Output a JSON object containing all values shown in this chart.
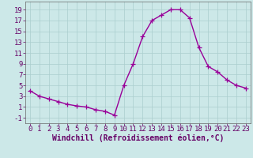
{
  "hours": [
    0,
    1,
    2,
    3,
    4,
    5,
    6,
    7,
    8,
    9,
    10,
    11,
    12,
    13,
    14,
    15,
    16,
    17,
    18,
    19,
    20,
    21,
    22,
    23
  ],
  "values": [
    4.0,
    3.0,
    2.5,
    2.0,
    1.5,
    1.2,
    1.0,
    0.5,
    0.2,
    -0.5,
    5.0,
    9.0,
    14.0,
    17.0,
    18.0,
    19.0,
    19.0,
    17.5,
    12.0,
    8.5,
    7.5,
    6.0,
    5.0,
    4.5
  ],
  "line_color": "#990099",
  "marker": "+",
  "markersize": 4,
  "linewidth": 1.0,
  "bg_color": "#cce8e8",
  "grid_color": "#aacece",
  "xlabel": "Windchill (Refroidissement éolien,°C)",
  "xlabel_fontsize": 7,
  "ylabel_ticks": [
    -1,
    1,
    3,
    5,
    7,
    9,
    11,
    13,
    15,
    17,
    19
  ],
  "xlim": [
    -0.5,
    23.5
  ],
  "ylim": [
    -2.0,
    20.5
  ],
  "tick_fontsize": 6.5,
  "xtick_labels": [
    "0",
    "1",
    "2",
    "3",
    "4",
    "5",
    "6",
    "7",
    "8",
    "9",
    "10",
    "11",
    "12",
    "13",
    "14",
    "15",
    "16",
    "17",
    "18",
    "19",
    "20",
    "21",
    "22",
    "23"
  ]
}
